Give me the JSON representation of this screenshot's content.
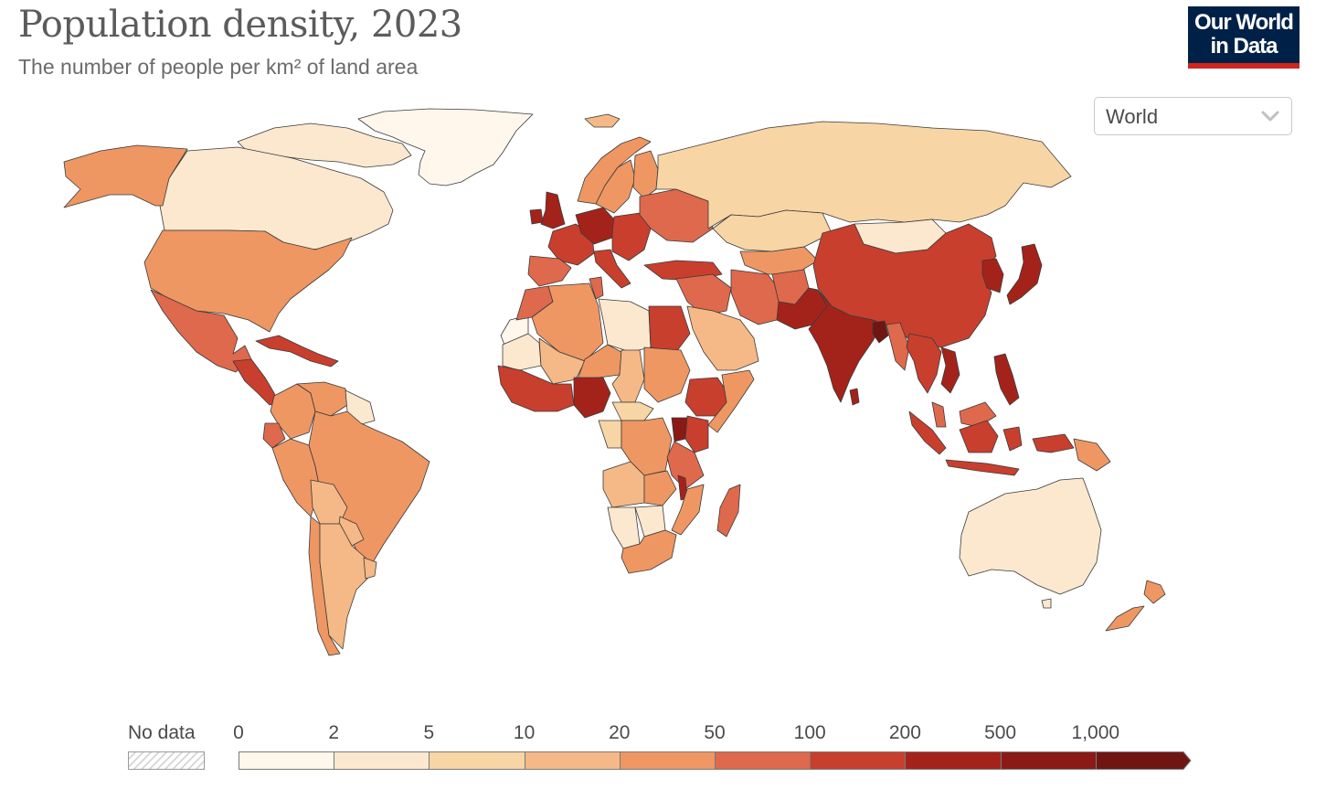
{
  "header": {
    "title": "Population density, 2023",
    "subtitle": "The number of people per km² of land area"
  },
  "logo": {
    "line1": "Our World",
    "line2": "in Data"
  },
  "region_selector": {
    "selected": "World"
  },
  "legend": {
    "no_data_label": "No data",
    "ticks": [
      "0",
      "2",
      "5",
      "10",
      "20",
      "50",
      "100",
      "200",
      "500",
      "1,000"
    ],
    "colors": [
      "#fff6ec",
      "#fbe8cf",
      "#f8d5a5",
      "#f4b987",
      "#ee9763",
      "#de694c",
      "#c83f2e",
      "#a3231b",
      "#8a1a16",
      "#701612"
    ],
    "no_data_color": "#d5d5d5"
  },
  "chart_data": {
    "type": "choropleth",
    "title": "Population density, 2023",
    "subtitle": "The number of people per km² of land area",
    "bins": [
      0,
      2,
      5,
      10,
      20,
      50,
      100,
      200,
      500,
      1000
    ],
    "regions": [
      {
        "name": "Greenland",
        "bin": 0
      },
      {
        "name": "Canada",
        "bin": 1
      },
      {
        "name": "Alaska (US)",
        "bin": 4
      },
      {
        "name": "United States",
        "bin": 4
      },
      {
        "name": "Mexico",
        "bin": 5
      },
      {
        "name": "Central America",
        "bin": 6
      },
      {
        "name": "Cuba & Caribbean",
        "bin": 6
      },
      {
        "name": "Colombia",
        "bin": 4
      },
      {
        "name": "Venezuela",
        "bin": 4
      },
      {
        "name": "Guianas",
        "bin": 1
      },
      {
        "name": "Peru",
        "bin": 4
      },
      {
        "name": "Ecuador",
        "bin": 5
      },
      {
        "name": "Brazil",
        "bin": 4
      },
      {
        "name": "Bolivia",
        "bin": 3
      },
      {
        "name": "Paraguay",
        "bin": 3
      },
      {
        "name": "Chile",
        "bin": 4
      },
      {
        "name": "Argentina",
        "bin": 3
      },
      {
        "name": "Uruguay",
        "bin": 3
      },
      {
        "name": "Iceland",
        "bin": 3
      },
      {
        "name": "Norway",
        "bin": 4
      },
      {
        "name": "Sweden",
        "bin": 4
      },
      {
        "name": "Finland",
        "bin": 4
      },
      {
        "name": "United Kingdom",
        "bin": 7
      },
      {
        "name": "France",
        "bin": 6
      },
      {
        "name": "Germany & Benelux",
        "bin": 7
      },
      {
        "name": "Spain & Portugal",
        "bin": 5
      },
      {
        "name": "Italy",
        "bin": 6
      },
      {
        "name": "Poland & Central Europe",
        "bin": 6
      },
      {
        "name": "Eastern Europe",
        "bin": 5
      },
      {
        "name": "Turkey",
        "bin": 6
      },
      {
        "name": "Russia",
        "bin": 2
      },
      {
        "name": "Kazakhstan",
        "bin": 2
      },
      {
        "name": "Central Asia",
        "bin": 4
      },
      {
        "name": "Mongolia",
        "bin": 1
      },
      {
        "name": "China",
        "bin": 6
      },
      {
        "name": "Korea",
        "bin": 7
      },
      {
        "name": "Japan",
        "bin": 7
      },
      {
        "name": "Middle East",
        "bin": 5
      },
      {
        "name": "Saudi Arabia",
        "bin": 3
      },
      {
        "name": "Iran",
        "bin": 5
      },
      {
        "name": "Afghanistan",
        "bin": 5
      },
      {
        "name": "Pakistan",
        "bin": 7
      },
      {
        "name": "India",
        "bin": 7
      },
      {
        "name": "Bangladesh",
        "bin": 9
      },
      {
        "name": "Sri Lanka",
        "bin": 7
      },
      {
        "name": "Myanmar",
        "bin": 5
      },
      {
        "name": "Southeast Asia",
        "bin": 6
      },
      {
        "name": "Vietnam",
        "bin": 7
      },
      {
        "name": "Philippines",
        "bin": 7
      },
      {
        "name": "Indonesia",
        "bin": 6
      },
      {
        "name": "Malaysia",
        "bin": 5
      },
      {
        "name": "Papua New Guinea",
        "bin": 4
      },
      {
        "name": "Australia",
        "bin": 1
      },
      {
        "name": "New Zealand",
        "bin": 4
      },
      {
        "name": "Western Sahara",
        "bin": 0
      },
      {
        "name": "Morocco",
        "bin": 5
      },
      {
        "name": "Algeria",
        "bin": 4
      },
      {
        "name": "Tunisia",
        "bin": 5
      },
      {
        "name": "Libya",
        "bin": 1
      },
      {
        "name": "Egypt",
        "bin": 6
      },
      {
        "name": "Mauritania",
        "bin": 1
      },
      {
        "name": "Mali",
        "bin": 3
      },
      {
        "name": "Niger",
        "bin": 4
      },
      {
        "name": "Chad",
        "bin": 3
      },
      {
        "name": "Sudan",
        "bin": 4
      },
      {
        "name": "West Africa coast",
        "bin": 6
      },
      {
        "name": "Nigeria",
        "bin": 7
      },
      {
        "name": "Central African Republic",
        "bin": 2
      },
      {
        "name": "Ethiopia",
        "bin": 6
      },
      {
        "name": "Horn of Africa",
        "bin": 4
      },
      {
        "name": "Congo (DRC)",
        "bin": 4
      },
      {
        "name": "Gabon & Congo",
        "bin": 2
      },
      {
        "name": "East Africa",
        "bin": 6
      },
      {
        "name": "Uganda & Rwanda",
        "bin": 8
      },
      {
        "name": "Tanzania",
        "bin": 5
      },
      {
        "name": "Angola",
        "bin": 3
      },
      {
        "name": "Zambia",
        "bin": 4
      },
      {
        "name": "Mozambique",
        "bin": 4
      },
      {
        "name": "Malawi",
        "bin": 7
      },
      {
        "name": "Namibia",
        "bin": 1
      },
      {
        "name": "Botswana",
        "bin": 1
      },
      {
        "name": "South Africa",
        "bin": 4
      },
      {
        "name": "Madagascar",
        "bin": 5
      }
    ]
  }
}
